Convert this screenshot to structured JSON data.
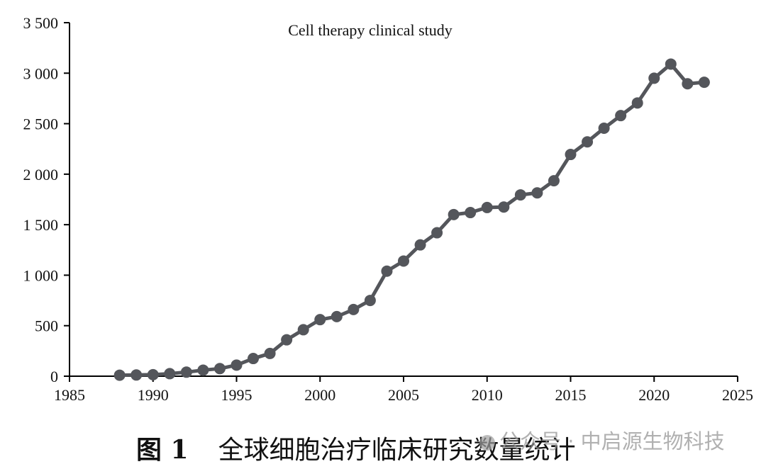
{
  "chart_data": {
    "type": "line",
    "title": "Cell therapy clinical study",
    "xlabel": "",
    "ylabel": "",
    "xlim": [
      1985,
      2025
    ],
    "ylim": [
      0,
      3500
    ],
    "x_ticks": [
      1985,
      1990,
      1995,
      2000,
      2005,
      2010,
      2015,
      2020,
      2025
    ],
    "y_ticks": [
      0,
      500,
      1000,
      1500,
      2000,
      2500,
      3000,
      3500
    ],
    "y_tick_labels": [
      "0",
      "500",
      "1 000",
      "1 500",
      "2 000",
      "2 500",
      "3 000",
      "3 500"
    ],
    "grid": false,
    "legend": "none",
    "series": [
      {
        "color": "#54565b",
        "marker": "circle",
        "x": [
          1988,
          1989,
          1990,
          1991,
          1992,
          1993,
          1994,
          1995,
          1996,
          1997,
          1998,
          1999,
          2000,
          2001,
          2002,
          2003,
          2004,
          2005,
          2006,
          2007,
          2008,
          2009,
          2010,
          2011,
          2012,
          2013,
          2014,
          2015,
          2016,
          2017,
          2018,
          2019,
          2020,
          2021,
          2022,
          2023
        ],
        "y": [
          10,
          12,
          15,
          25,
          40,
          60,
          75,
          110,
          175,
          225,
          360,
          460,
          560,
          590,
          660,
          750,
          1040,
          1140,
          1300,
          1420,
          1600,
          1620,
          1670,
          1675,
          1795,
          1815,
          1935,
          2195,
          2320,
          2455,
          2580,
          2705,
          2950,
          3090,
          2895,
          2910
        ]
      }
    ]
  },
  "caption": {
    "figure_number": "图 1",
    "text": "全球细胞治疗临床研究数量统计"
  },
  "watermark": {
    "text": "公众号 · 中启源生物科技"
  }
}
